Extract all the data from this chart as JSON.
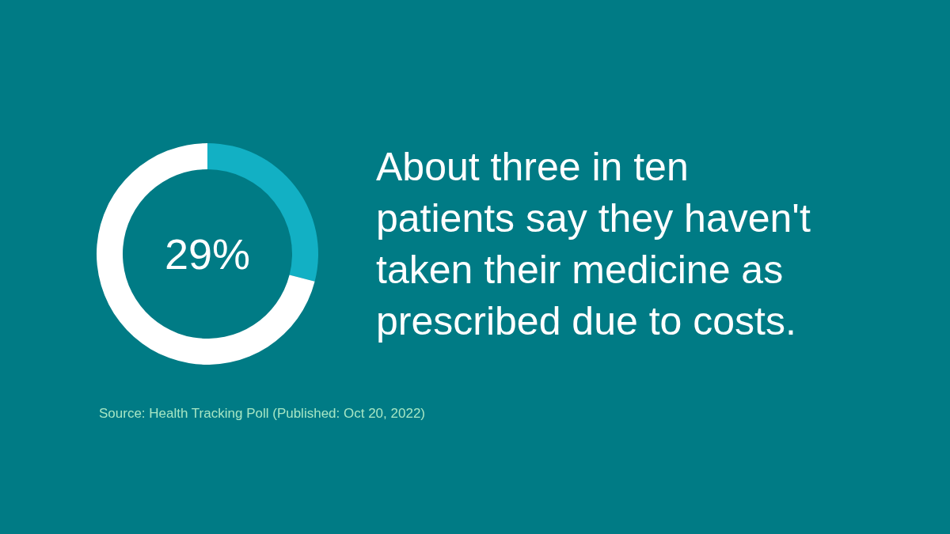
{
  "chart_data": {
    "type": "donut",
    "title": "About three in ten patients say they haven't taken their medicine as prescribed due to costs.",
    "categories": [
      null,
      null
    ],
    "values": [
      29,
      71
    ],
    "colors": [
      "#12b0c4",
      "#ffffff"
    ],
    "annotations": [
      "29%",
      "Source: Health Tracking Poll (Published: Oct 20, 2022)"
    ]
  }
}
